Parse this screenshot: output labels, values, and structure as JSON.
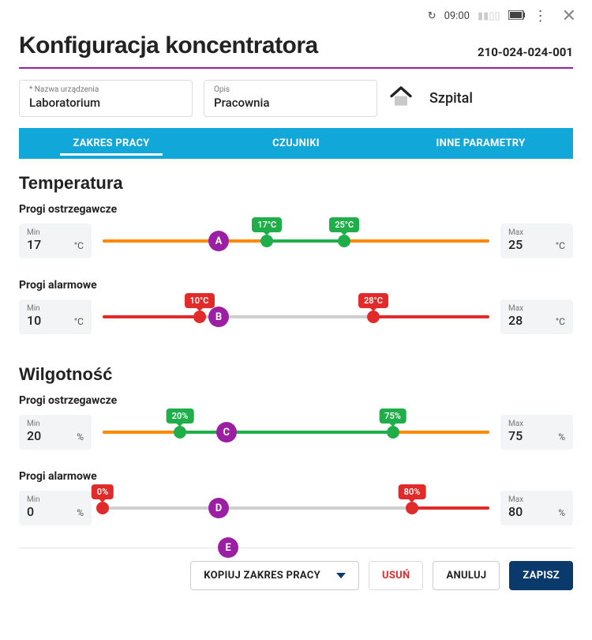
{
  "status": {
    "time": "09:00"
  },
  "header": {
    "title": "Konfiguracja koncentratora",
    "device_id": "210-024-024-001"
  },
  "fields": {
    "name_label": "* Nazwa urządzenia",
    "name_value": "Laboratorium",
    "desc_label": "Opis",
    "desc_value": "Pracownia",
    "location": "Szpital"
  },
  "tabs": {
    "t1": "ZAKRES PRACY",
    "t2": "CZUJNIKI",
    "t3": "INNE PARAMETRY"
  },
  "labels": {
    "min": "Min",
    "max": "Max"
  },
  "colors": {
    "gray": "#cfcfcf",
    "orange": "#ff8a00",
    "green": "#1fae4a",
    "red": "#e12b2b",
    "purple": "#9b1fa2",
    "navy": "#0a3a6b"
  },
  "temperature": {
    "title": "Temperatura",
    "warning": {
      "title": "Progi ostrzegawcze",
      "min": 17,
      "max": 25,
      "unit": "°C",
      "range": [
        0,
        40
      ],
      "low": 17,
      "high": 25,
      "marker": "A",
      "badge_low": "17°C",
      "badge_high": "25°C"
    },
    "alarm": {
      "title": "Progi alarmowe",
      "min": 10,
      "max": 28,
      "unit": "°C",
      "range": [
        0,
        40
      ],
      "low": 10,
      "high": 28,
      "marker": "B",
      "badge_low": "10°C",
      "badge_high": "28°C"
    }
  },
  "humidity": {
    "title": "Wilgotność",
    "warning": {
      "title": "Progi ostrzegawcze",
      "min": 20,
      "max": 75,
      "unit": "%",
      "range": [
        0,
        100
      ],
      "low": 20,
      "high": 75,
      "marker": "C",
      "badge_low": "20%",
      "badge_high": "75%"
    },
    "alarm": {
      "title": "Progi alarmowe",
      "min": 0,
      "max": 80,
      "unit": "%",
      "range": [
        0,
        100
      ],
      "low": 0,
      "high": 80,
      "marker": "D",
      "badge_low": "0%",
      "badge_high": "80%"
    }
  },
  "footer": {
    "marker": "E",
    "copy": "KOPIUJ ZAKRES PRACY",
    "delete": "USUŃ",
    "cancel": "ANULUJ",
    "save": "ZAPISZ"
  },
  "slider_style": {
    "warning": {
      "outer": "#ff8a00",
      "inner": "#1fae4a",
      "handle": "#1fae4a",
      "badge": "#1fae4a"
    },
    "alarm": {
      "outer": "#e12b2b",
      "inner": "#cfcfcf",
      "handle": "#e12b2b",
      "badge": "#e12b2b"
    }
  }
}
